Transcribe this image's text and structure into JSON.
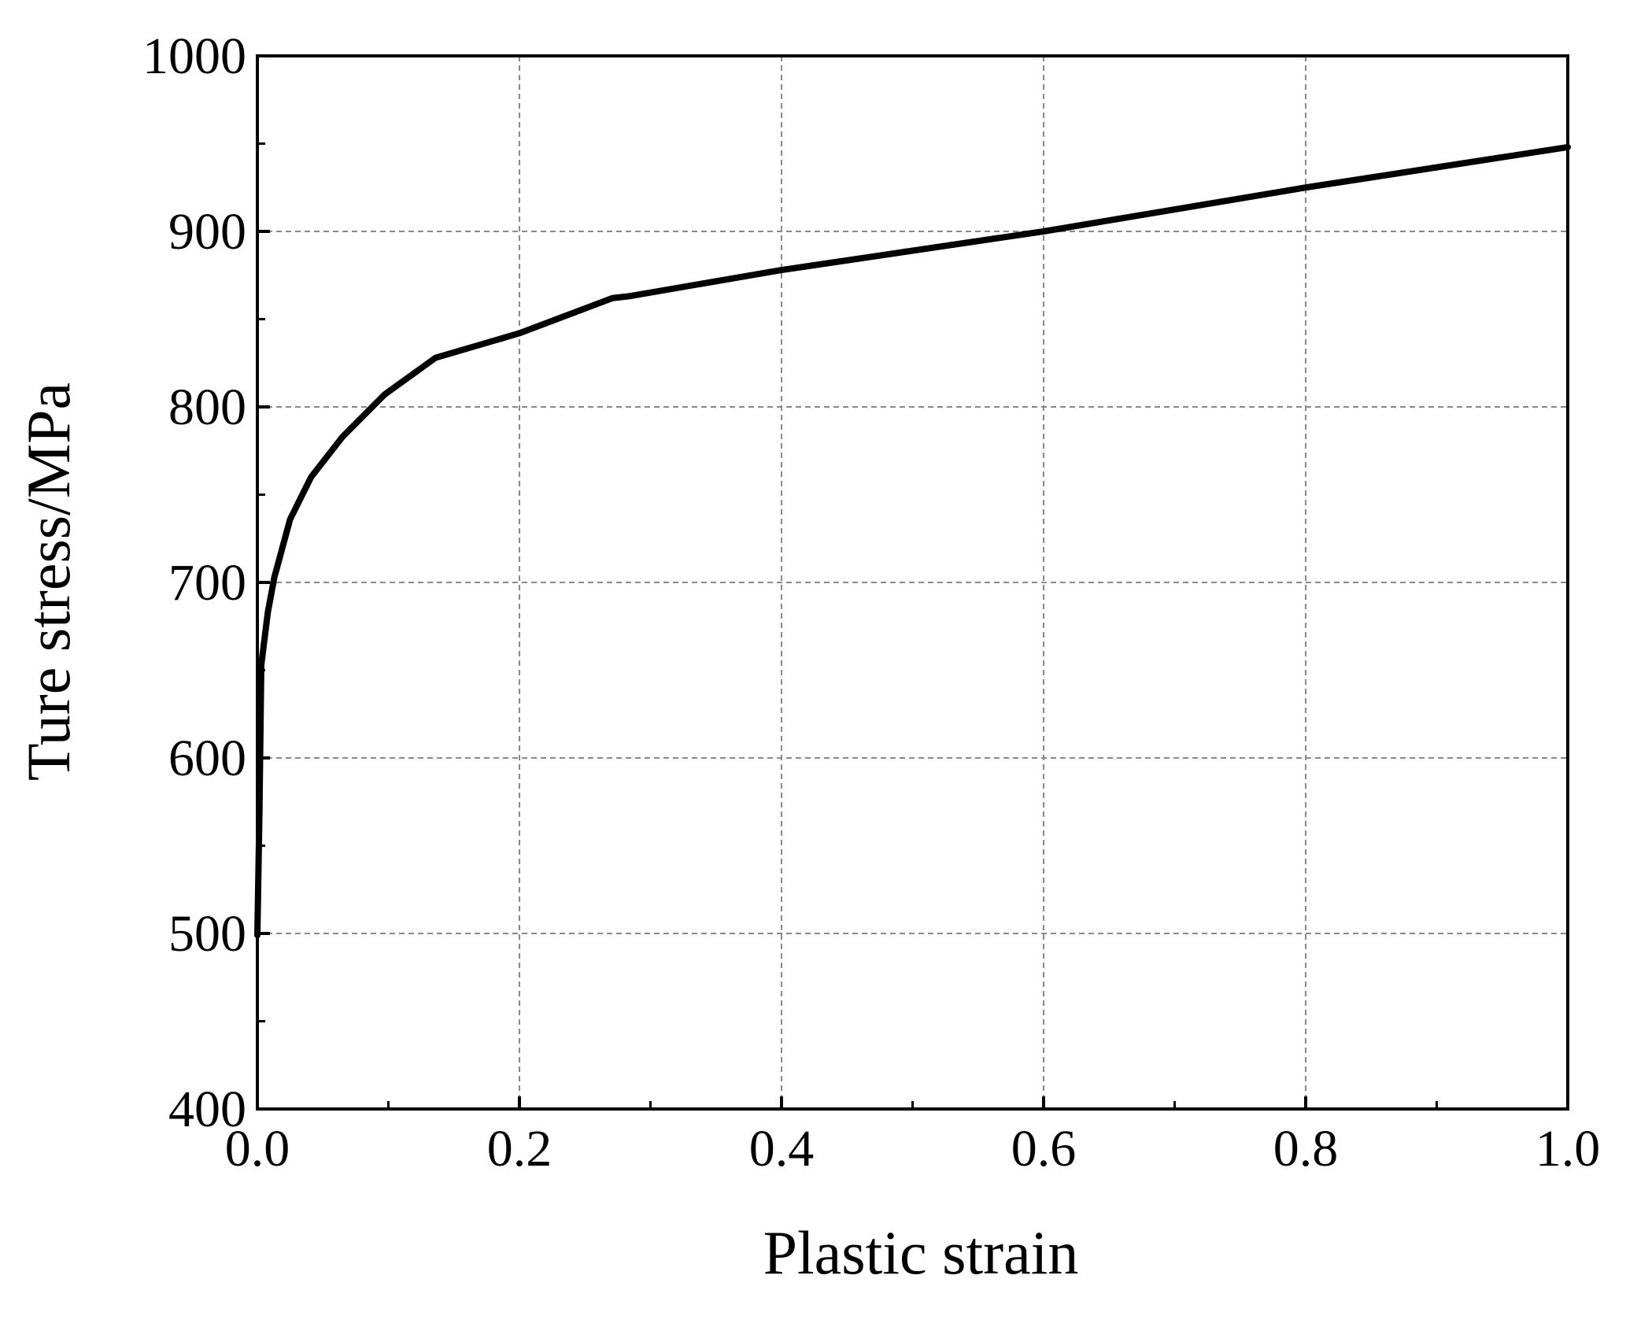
{
  "chart_data": {
    "type": "line",
    "xlabel": "Plastic strain",
    "ylabel": "Ture stress/MPa",
    "xlim": [
      0,
      1
    ],
    "ylim": [
      400,
      1000
    ],
    "xticks": [
      {
        "value": 0,
        "label": "0.0"
      },
      0.2,
      0.4,
      0.6,
      0.8,
      {
        "value": 1,
        "label": "1.0"
      }
    ],
    "yticks": [
      400,
      500,
      600,
      700,
      800,
      900,
      1000
    ],
    "xminorticks": [
      0.1,
      0.3,
      0.5,
      0.7,
      0.9
    ],
    "yminorticks": [
      450,
      550,
      650,
      750,
      850,
      950
    ],
    "grid": true,
    "series": [
      {
        "color": "#000000",
        "x": [
          0,
          0.0016,
          0.003,
          0.008,
          0.013,
          0.025,
          0.041,
          0.065,
          0.097,
          0.136,
          0.2,
          0.271,
          0.283,
          0.4,
          0.6,
          0.8,
          1.0
        ],
        "values": [
          499,
          570,
          653,
          683,
          703,
          736,
          760,
          783,
          807,
          828,
          842,
          862,
          863,
          878,
          900,
          925,
          948
        ]
      }
    ]
  }
}
